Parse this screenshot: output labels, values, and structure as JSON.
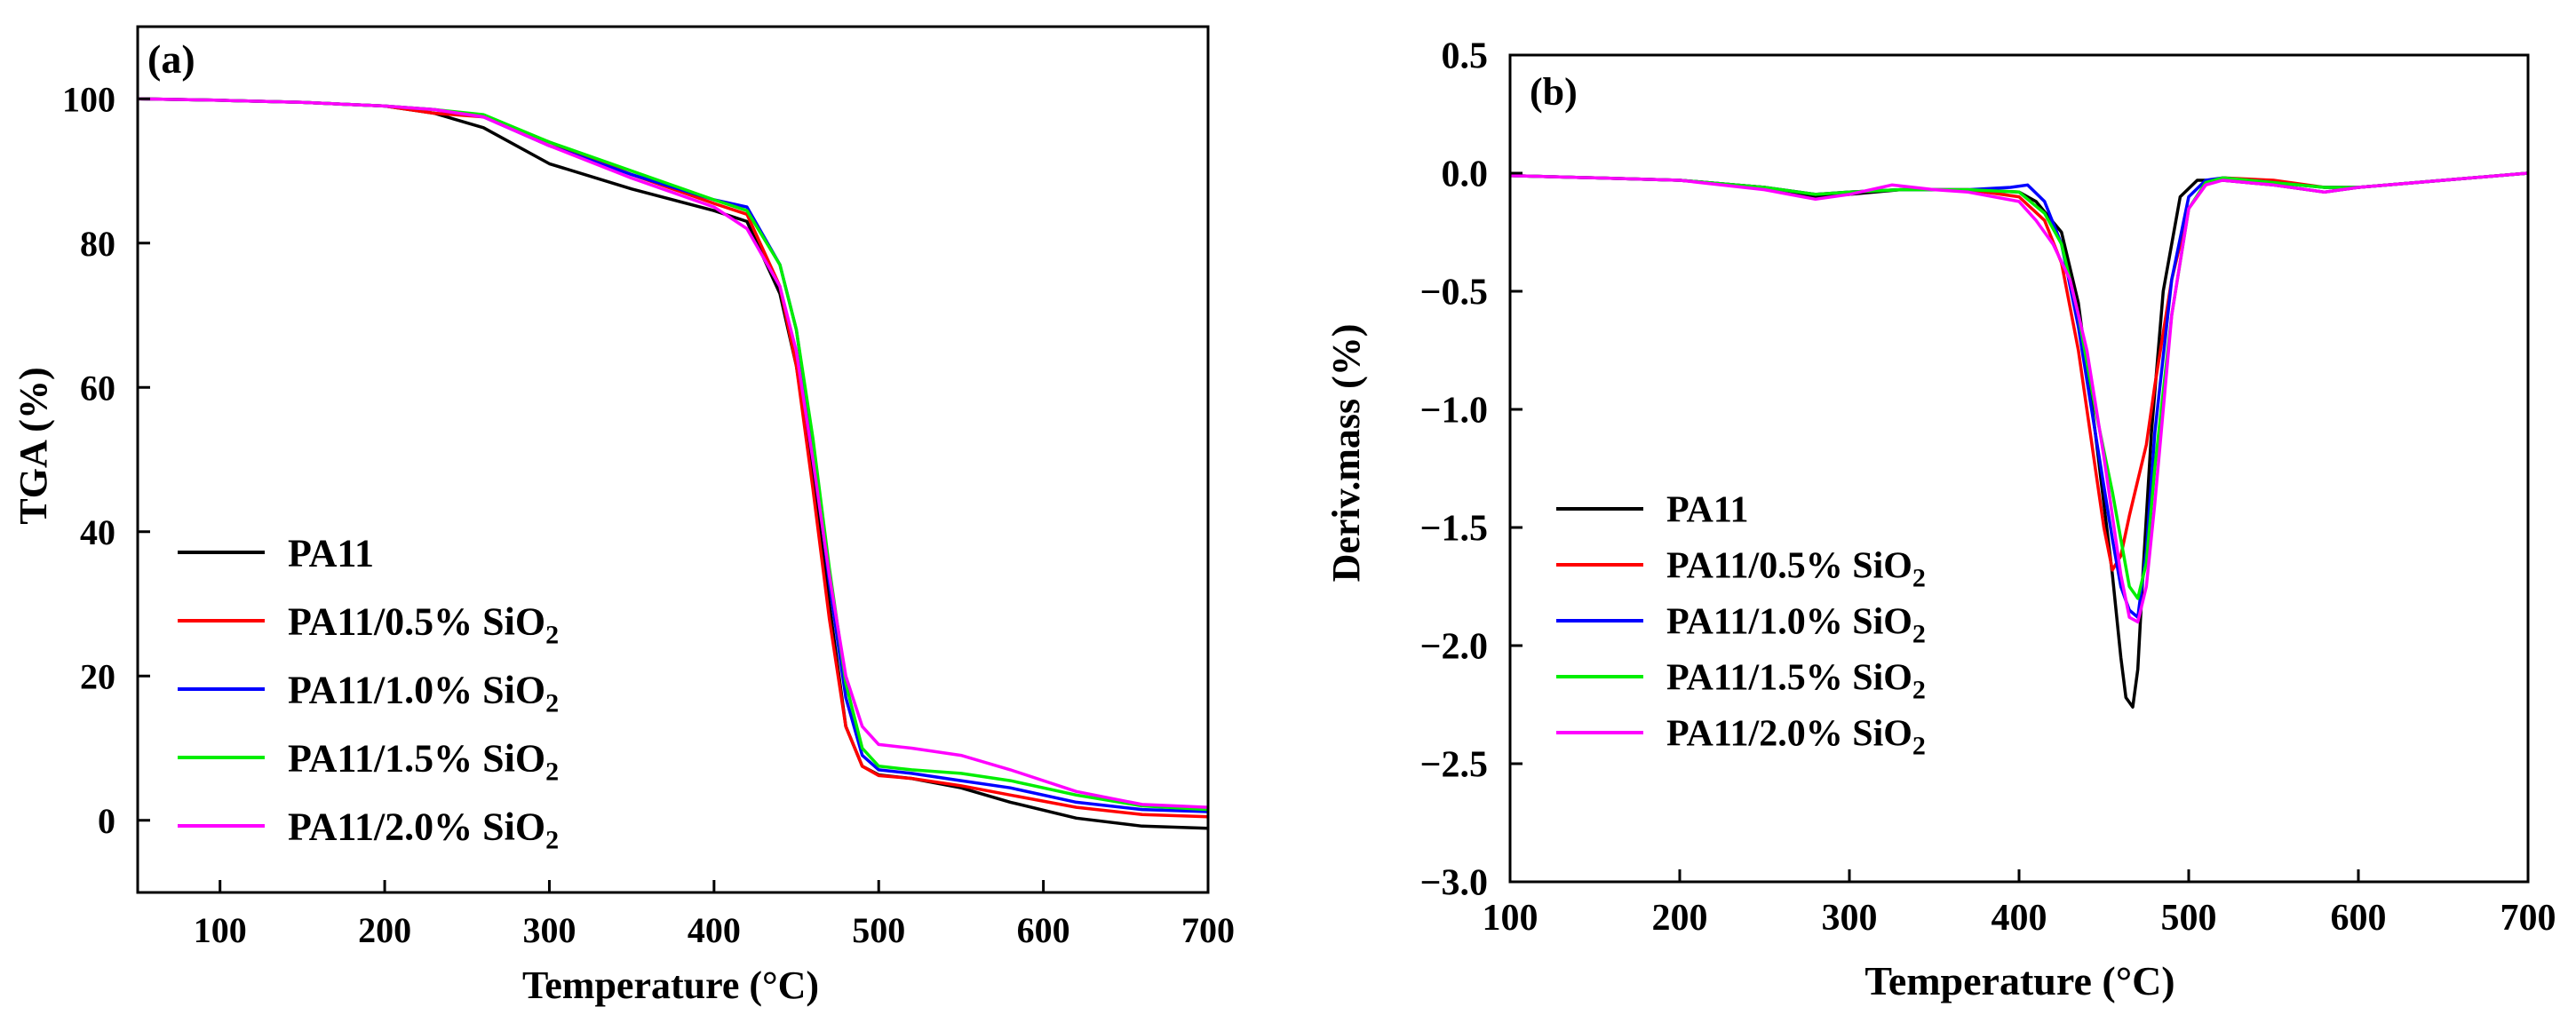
{
  "chart_data": [
    {
      "panel": "a",
      "type": "line",
      "panel_label": "(a)",
      "xlabel": "Temperature (°C)",
      "ylabel": "TGA (%)",
      "xlim": [
        50,
        700
      ],
      "ylim": [
        -10,
        110
      ],
      "xticks": [
        100,
        200,
        300,
        400,
        500,
        600,
        700
      ],
      "yticks": [
        0,
        20,
        40,
        60,
        80,
        100
      ],
      "legend_position": "lower-left",
      "series": [
        {
          "name": "PA11",
          "legend_label": "PA11",
          "legend_sub": "",
          "color": "#000000",
          "x": [
            50,
            100,
            150,
            200,
            230,
            260,
            300,
            350,
            400,
            420,
            440,
            450,
            460,
            470,
            480,
            490,
            500,
            520,
            550,
            580,
            620,
            660,
            700
          ],
          "y": [
            100,
            99.8,
            99.5,
            99,
            98,
            96,
            91,
            87.5,
            84.5,
            83,
            73,
            63,
            48,
            30,
            13,
            7.5,
            6.3,
            5.8,
            4.5,
            2.5,
            0.3,
            -0.8,
            -1.1
          ]
        },
        {
          "name": "PA11/0.5% SiO2",
          "legend_label": "PA11/0.5% SiO",
          "legend_sub": "2",
          "color": "#ff0000",
          "x": [
            50,
            100,
            150,
            200,
            230,
            260,
            300,
            350,
            400,
            420,
            440,
            450,
            460,
            470,
            480,
            490,
            500,
            520,
            550,
            580,
            620,
            660,
            700
          ],
          "y": [
            100,
            99.8,
            99.5,
            99,
            98,
            97.5,
            94,
            89.5,
            85.5,
            84,
            74,
            63,
            46,
            28,
            13,
            7.5,
            6.2,
            5.8,
            4.8,
            3.5,
            1.8,
            0.8,
            0.5
          ]
        },
        {
          "name": "PA11/1.0% SiO2",
          "legend_label": "PA11/1.0% SiO",
          "legend_sub": "2",
          "color": "#0000ff",
          "x": [
            50,
            100,
            150,
            200,
            230,
            260,
            300,
            350,
            400,
            420,
            440,
            450,
            460,
            470,
            480,
            490,
            500,
            520,
            550,
            580,
            620,
            660,
            700
          ],
          "y": [
            100,
            99.8,
            99.5,
            99,
            98.5,
            97.5,
            93.5,
            89.5,
            86,
            85,
            77,
            68,
            52,
            33,
            17,
            9,
            7,
            6.5,
            5.5,
            4.5,
            2.5,
            1.5,
            1.2
          ]
        },
        {
          "name": "PA11/1.5% SiO2",
          "legend_label": "PA11/1.5% SiO",
          "legend_sub": "2",
          "color": "#00ee00",
          "x": [
            50,
            100,
            150,
            200,
            230,
            260,
            300,
            350,
            400,
            420,
            440,
            450,
            460,
            470,
            480,
            490,
            500,
            520,
            550,
            580,
            620,
            660,
            700
          ],
          "y": [
            100,
            99.8,
            99.5,
            99,
            98.5,
            97.8,
            94,
            90,
            86,
            84.5,
            77,
            68,
            53,
            35,
            19,
            10,
            7.5,
            7,
            6.5,
            5.5,
            3.5,
            2,
            1.5
          ]
        },
        {
          "name": "PA11/2.0% SiO2",
          "legend_label": "PA11/2.0% SiO",
          "legend_sub": "2",
          "color": "#ff00ff",
          "x": [
            50,
            100,
            150,
            200,
            230,
            260,
            300,
            350,
            400,
            420,
            440,
            450,
            460,
            470,
            480,
            490,
            500,
            520,
            550,
            580,
            620,
            660,
            700
          ],
          "y": [
            100,
            99.8,
            99.5,
            99,
            98.5,
            97.5,
            93.5,
            89,
            85,
            82,
            74,
            65,
            50,
            34,
            20,
            13,
            10.5,
            10,
            9,
            7,
            4,
            2.2,
            1.8
          ]
        }
      ]
    },
    {
      "panel": "b",
      "type": "line",
      "panel_label": "(b)",
      "xlabel": "Temperature (°C)",
      "ylabel": "Deriv.mass (%)",
      "xlim": [
        100,
        700
      ],
      "ylim": [
        -3.0,
        0.5
      ],
      "xticks": [
        100,
        200,
        300,
        400,
        500,
        600,
        700
      ],
      "xtick_labels": [
        "100",
        "200",
        "300",
        "400",
        "500",
        "600",
        "700"
      ],
      "yticks": [
        0.5,
        0.0,
        -0.5,
        -1.0,
        -1.5,
        -2.0,
        -2.5,
        -3.0
      ],
      "ytick_labels": [
        "0.5",
        "0.0",
        "−0.5",
        "−1.0",
        "−1.5",
        "−2.0",
        "−2.5",
        "−3.0"
      ],
      "legend_position": "lower-left",
      "series": [
        {
          "name": "PA11",
          "legend_label": "PA11",
          "legend_sub": "",
          "color": "#000000",
          "x": [
            100,
            150,
            200,
            250,
            280,
            300,
            330,
            370,
            400,
            410,
            425,
            435,
            445,
            455,
            460,
            463,
            467,
            470,
            473,
            478,
            485,
            495,
            505,
            520,
            550,
            580,
            600,
            650,
            700
          ],
          "y": [
            -0.01,
            -0.02,
            -0.03,
            -0.06,
            -0.1,
            -0.09,
            -0.07,
            -0.07,
            -0.08,
            -0.12,
            -0.25,
            -0.55,
            -1.1,
            -1.7,
            -2.05,
            -2.22,
            -2.26,
            -2.1,
            -1.7,
            -1.1,
            -0.5,
            -0.1,
            -0.03,
            -0.03,
            -0.05,
            -0.08,
            -0.06,
            -0.03,
            0.0
          ]
        },
        {
          "name": "PA11/0.5% SiO2",
          "legend_label": "PA11/0.5% SiO",
          "legend_sub": "2",
          "color": "#ff0000",
          "x": [
            100,
            150,
            200,
            250,
            280,
            300,
            330,
            370,
            400,
            415,
            425,
            435,
            445,
            450,
            455,
            460,
            465,
            470,
            475,
            480,
            490,
            500,
            510,
            520,
            550,
            580,
            600,
            650,
            700
          ],
          "y": [
            -0.01,
            -0.02,
            -0.03,
            -0.06,
            -0.09,
            -0.08,
            -0.07,
            -0.07,
            -0.1,
            -0.2,
            -0.38,
            -0.75,
            -1.25,
            -1.5,
            -1.68,
            -1.62,
            -1.45,
            -1.3,
            -1.15,
            -0.9,
            -0.45,
            -0.15,
            -0.05,
            -0.02,
            -0.03,
            -0.06,
            -0.06,
            -0.03,
            0.0
          ]
        },
        {
          "name": "PA11/1.0% SiO2",
          "legend_label": "PA11/1.0% SiO",
          "legend_sub": "2",
          "color": "#0000ff",
          "x": [
            100,
            150,
            200,
            250,
            280,
            300,
            330,
            370,
            395,
            405,
            415,
            425,
            435,
            445,
            455,
            460,
            465,
            470,
            475,
            480,
            490,
            500,
            510,
            520,
            550,
            580,
            600,
            650,
            700
          ],
          "y": [
            -0.01,
            -0.02,
            -0.03,
            -0.06,
            -0.09,
            -0.08,
            -0.07,
            -0.07,
            -0.06,
            -0.05,
            -0.12,
            -0.3,
            -0.65,
            -1.1,
            -1.55,
            -1.75,
            -1.85,
            -1.88,
            -1.6,
            -1.1,
            -0.45,
            -0.1,
            -0.03,
            -0.02,
            -0.04,
            -0.06,
            -0.06,
            -0.03,
            0.0
          ]
        },
        {
          "name": "PA11/1.5% SiO2",
          "legend_label": "PA11/1.5% SiO",
          "legend_sub": "2",
          "color": "#00ee00",
          "x": [
            100,
            150,
            200,
            250,
            280,
            300,
            330,
            370,
            400,
            415,
            425,
            435,
            445,
            455,
            460,
            465,
            470,
            475,
            480,
            490,
            500,
            510,
            520,
            550,
            580,
            600,
            650,
            700
          ],
          "y": [
            -0.01,
            -0.02,
            -0.03,
            -0.06,
            -0.09,
            -0.08,
            -0.07,
            -0.07,
            -0.08,
            -0.17,
            -0.3,
            -0.6,
            -1.0,
            -1.35,
            -1.55,
            -1.75,
            -1.8,
            -1.65,
            -1.25,
            -0.6,
            -0.15,
            -0.04,
            -0.02,
            -0.04,
            -0.06,
            -0.06,
            -0.03,
            0.0
          ]
        },
        {
          "name": "PA11/2.0% SiO2",
          "legend_label": "PA11/2.0% SiO",
          "legend_sub": "2",
          "color": "#ff00ff",
          "x": [
            100,
            150,
            200,
            250,
            280,
            300,
            325,
            350,
            370,
            400,
            410,
            420,
            430,
            440,
            450,
            460,
            465,
            470,
            475,
            480,
            490,
            500,
            510,
            520,
            550,
            580,
            600,
            650,
            700
          ],
          "y": [
            -0.01,
            -0.02,
            -0.03,
            -0.07,
            -0.11,
            -0.09,
            -0.05,
            -0.07,
            -0.08,
            -0.12,
            -0.2,
            -0.3,
            -0.45,
            -0.75,
            -1.2,
            -1.7,
            -1.88,
            -1.9,
            -1.75,
            -1.4,
            -0.6,
            -0.15,
            -0.05,
            -0.03,
            -0.05,
            -0.08,
            -0.06,
            -0.03,
            0.0
          ]
        }
      ]
    }
  ]
}
